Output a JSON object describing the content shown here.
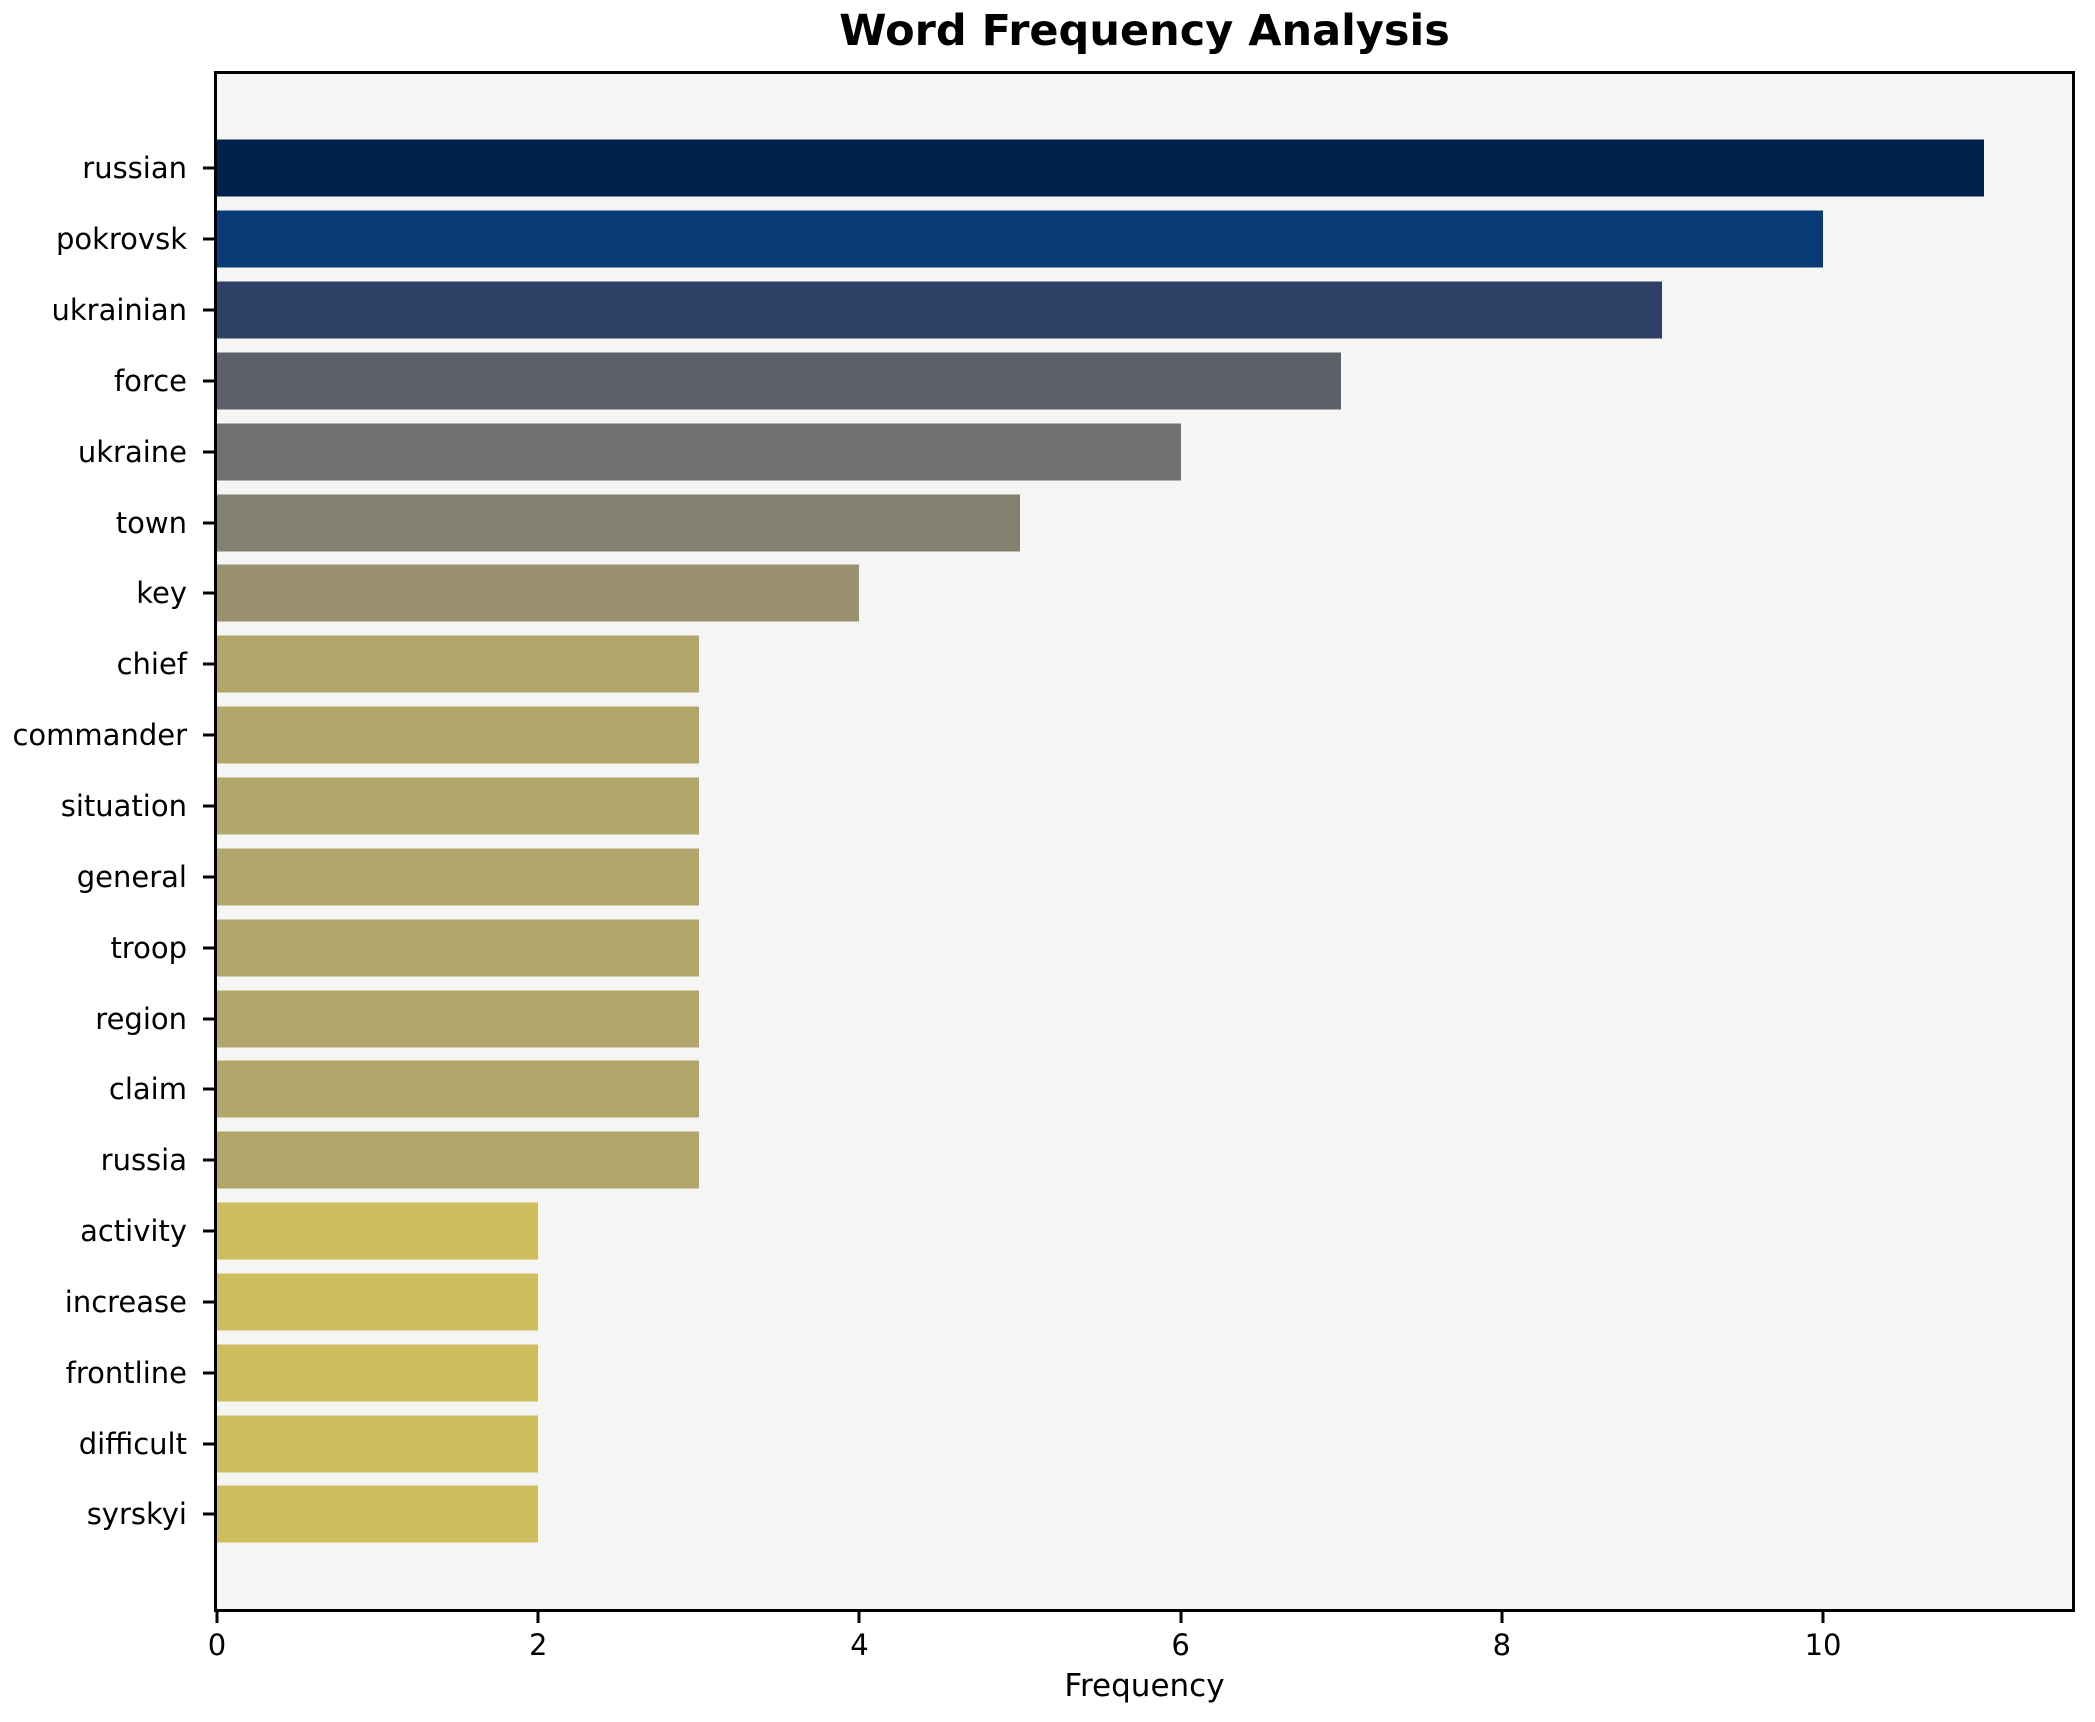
{
  "chart_data": {
    "type": "bar",
    "orientation": "horizontal",
    "title": "Word Frequency Analysis",
    "xlabel": "Frequency",
    "ylabel": "",
    "xlim": [
      0,
      11.55
    ],
    "x_ticks": [
      0,
      2,
      4,
      6,
      8,
      10
    ],
    "grid": false,
    "legend": "none",
    "plot_background": "#f5f5f4",
    "figure_background": "#ffffff",
    "spine_color": "#000000",
    "categories": [
      "russian",
      "pokrovsk",
      "ukrainian",
      "force",
      "ukraine",
      "town",
      "key",
      "chief",
      "commander",
      "situation",
      "general",
      "troop",
      "region",
      "claim",
      "russia",
      "activity",
      "increase",
      "frontline",
      "difficult",
      "syrskyi"
    ],
    "values": [
      11,
      10,
      9,
      7,
      6,
      5,
      4,
      3,
      3,
      3,
      3,
      3,
      3,
      3,
      3,
      2,
      2,
      2,
      2,
      2
    ],
    "bar_colors": [
      "#01214d",
      "#083a76",
      "#2e4066",
      "#5b6069",
      "#6e7072",
      "#828170",
      "#99916f",
      "#b2a76a",
      "#b2a76a",
      "#b2a76a",
      "#b2a76a",
      "#b2a76a",
      "#b2a76a",
      "#b2a76a",
      "#b2a76a",
      "#cdbd5e",
      "#cdbd5e",
      "#cdbd5e",
      "#cdbd5e",
      "#cdbd5e"
    ]
  }
}
